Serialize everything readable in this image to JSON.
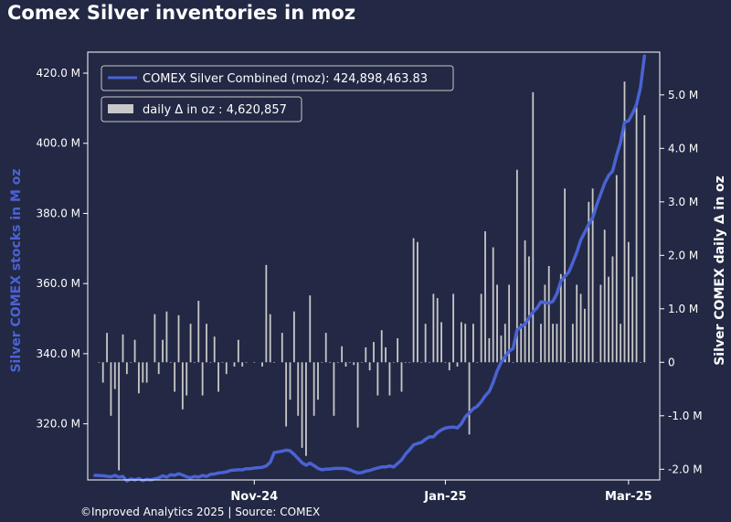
{
  "title": "Comex Silver inventories in moz",
  "footer": "©Inproved Analytics 2025 | Source: COMEX",
  "colors": {
    "background": "#232844",
    "line": "#4a63d3",
    "bars": "#c8c8c8",
    "frame": "#ffffff"
  },
  "chart_data": {
    "type": "line",
    "title": "Comex Silver inventories in moz",
    "ylabel_left": "Silver COMEX stocks in M oz",
    "ylabel_right": "Silver COMEX daily Δ in oz",
    "ylim_left": [
      304,
      426
    ],
    "ylim_right": [
      -2.2,
      5.8
    ],
    "yticks_left": [
      "320.0 M",
      "340.0 M",
      "360.0 M",
      "380.0 M",
      "400.0 M",
      "420.0 M"
    ],
    "yticks_left_values": [
      320,
      340,
      360,
      380,
      400,
      420
    ],
    "yticks_right": [
      "-2.0 M",
      "-1.0 M",
      "0",
      "1.0 M",
      "2.0 M",
      "3.0 M",
      "4.0 M",
      "5.0 M"
    ],
    "yticks_right_values": [
      -2,
      -1,
      0,
      1,
      2,
      3,
      4,
      5
    ],
    "xlim": [
      0,
      140
    ],
    "xticks": [
      {
        "label": "Nov-24",
        "x": 40
      },
      {
        "label": "Jan-25",
        "x": 88
      },
      {
        "label": "Mar-25",
        "x": 134
      }
    ],
    "legend": {
      "placement": "top-left",
      "line_label": "COMEX Silver Combined (moz): 424,898,463.83",
      "bar_label": "daily Δ in oz : 4,620,857"
    },
    "series": [
      {
        "name": "COMEX Silver Combined (moz)",
        "kind": "line",
        "points": [
          [
            0,
            305.3
          ],
          [
            2,
            305.2
          ],
          [
            4,
            304.9
          ],
          [
            5,
            305.3
          ],
          [
            6,
            304.8
          ],
          [
            7,
            305.0
          ],
          [
            8,
            303.7
          ],
          [
            9,
            304.3
          ],
          [
            10,
            304.0
          ],
          [
            11,
            304.4
          ],
          [
            12,
            303.8
          ],
          [
            13,
            304.2
          ],
          [
            14,
            304.0
          ],
          [
            15,
            304.3
          ],
          [
            16,
            304.6
          ],
          [
            17,
            305.2
          ],
          [
            18,
            304.8
          ],
          [
            19,
            305.5
          ],
          [
            20,
            305.3
          ],
          [
            21,
            305.8
          ],
          [
            22,
            305.4
          ],
          [
            23,
            304.9
          ],
          [
            24,
            304.6
          ],
          [
            25,
            305.0
          ],
          [
            26,
            304.8
          ],
          [
            27,
            305.3
          ],
          [
            28,
            305.0
          ],
          [
            29,
            305.6
          ],
          [
            30,
            305.7
          ],
          [
            31,
            306.0
          ],
          [
            32,
            306.1
          ],
          [
            33,
            306.3
          ],
          [
            34,
            306.7
          ],
          [
            35,
            306.8
          ],
          [
            36,
            306.9
          ],
          [
            37,
            306.9
          ],
          [
            38,
            307.2
          ],
          [
            39,
            307.2
          ],
          [
            40,
            307.4
          ],
          [
            41,
            307.5
          ],
          [
            42,
            307.6
          ],
          [
            43,
            308.0
          ],
          [
            44,
            309.0
          ],
          [
            45,
            311.8
          ],
          [
            46,
            312.0
          ],
          [
            47,
            312.2
          ],
          [
            48,
            312.5
          ],
          [
            49,
            312.3
          ],
          [
            50,
            311.3
          ],
          [
            51,
            310.1
          ],
          [
            52,
            308.9
          ],
          [
            53,
            308.2
          ],
          [
            54,
            308.8
          ],
          [
            55,
            308.1
          ],
          [
            56,
            307.3
          ],
          [
            57,
            306.9
          ],
          [
            58,
            307.1
          ],
          [
            59,
            307.1
          ],
          [
            60,
            307.3
          ],
          [
            61,
            307.3
          ],
          [
            62,
            307.3
          ],
          [
            63,
            307.2
          ],
          [
            64,
            306.9
          ],
          [
            65,
            306.4
          ],
          [
            66,
            306.0
          ],
          [
            67,
            306.1
          ],
          [
            68,
            306.5
          ],
          [
            69,
            306.7
          ],
          [
            70,
            307.1
          ],
          [
            71,
            307.4
          ],
          [
            72,
            307.7
          ],
          [
            73,
            307.7
          ],
          [
            74,
            308.0
          ],
          [
            75,
            307.7
          ],
          [
            76,
            308.7
          ],
          [
            77,
            309.7
          ],
          [
            78,
            311.4
          ],
          [
            79,
            312.6
          ],
          [
            80,
            314.0
          ],
          [
            81,
            314.4
          ],
          [
            82,
            314.7
          ],
          [
            83,
            315.6
          ],
          [
            84,
            316.3
          ],
          [
            85,
            316.3
          ],
          [
            86,
            317.5
          ],
          [
            87,
            318.3
          ],
          [
            88,
            318.8
          ],
          [
            89,
            319.0
          ],
          [
            90,
            319.1
          ],
          [
            91,
            318.8
          ],
          [
            92,
            320.0
          ],
          [
            93,
            322.0
          ],
          [
            94,
            323.1
          ],
          [
            95,
            324.3
          ],
          [
            96,
            325.0
          ],
          [
            97,
            326.3
          ],
          [
            98,
            328.0
          ],
          [
            99,
            329.2
          ],
          [
            100,
            331.8
          ],
          [
            101,
            335.1
          ],
          [
            102,
            337.5
          ],
          [
            103,
            339.2
          ],
          [
            104,
            340.7
          ],
          [
            105,
            341.5
          ],
          [
            106,
            346.7
          ],
          [
            107,
            347.7
          ],
          [
            108,
            348.4
          ],
          [
            109,
            350.3
          ],
          [
            110,
            351.9
          ],
          [
            111,
            353.0
          ],
          [
            112,
            354.8
          ],
          [
            113,
            354.6
          ],
          [
            114,
            354.4
          ],
          [
            115,
            354.9
          ],
          [
            116,
            357.1
          ],
          [
            117,
            360.7
          ],
          [
            118,
            362.0
          ],
          [
            119,
            363.3
          ],
          [
            120,
            366.0
          ],
          [
            121,
            368.9
          ],
          [
            122,
            372.4
          ],
          [
            123,
            374.6
          ],
          [
            124,
            376.9
          ],
          [
            125,
            378.8
          ],
          [
            126,
            382.4
          ],
          [
            127,
            385.5
          ],
          [
            128,
            388.6
          ],
          [
            129,
            390.8
          ],
          [
            130,
            392.1
          ],
          [
            131,
            396.5
          ],
          [
            132,
            400.3
          ],
          [
            133,
            406.0
          ],
          [
            134,
            406.4
          ],
          [
            135,
            408.5
          ],
          [
            136,
            411.0
          ],
          [
            137,
            415.9
          ],
          [
            138,
            424.9
          ]
        ]
      },
      {
        "name": "daily Δ in oz",
        "kind": "bar",
        "axis": "right",
        "points": [
          [
            1,
            0.0
          ],
          [
            2,
            -0.38
          ],
          [
            3,
            0.55
          ],
          [
            4,
            -1.0
          ],
          [
            5,
            -0.5
          ],
          [
            6,
            -2.02
          ],
          [
            7,
            0.52
          ],
          [
            8,
            -0.22
          ],
          [
            9,
            0.0
          ],
          [
            10,
            0.42
          ],
          [
            11,
            -0.58
          ],
          [
            12,
            -0.38
          ],
          [
            13,
            -0.38
          ],
          [
            15,
            0.9
          ],
          [
            16,
            -0.22
          ],
          [
            17,
            0.42
          ],
          [
            18,
            0.95
          ],
          [
            19,
            0.0
          ],
          [
            20,
            -0.55
          ],
          [
            21,
            0.88
          ],
          [
            22,
            -0.88
          ],
          [
            23,
            -0.62
          ],
          [
            24,
            0.72
          ],
          [
            25,
            0.0
          ],
          [
            26,
            1.15
          ],
          [
            27,
            -0.62
          ],
          [
            28,
            0.72
          ],
          [
            29,
            0.0
          ],
          [
            30,
            0.48
          ],
          [
            31,
            -0.55
          ],
          [
            32,
            0.0
          ],
          [
            33,
            -0.22
          ],
          [
            35,
            -0.08
          ],
          [
            36,
            0.42
          ],
          [
            37,
            -0.08
          ],
          [
            38,
            0.0
          ],
          [
            40,
            0.0
          ],
          [
            42,
            -0.08
          ],
          [
            43,
            1.82
          ],
          [
            44,
            0.9
          ],
          [
            45,
            0.0
          ],
          [
            47,
            0.55
          ],
          [
            48,
            -1.2
          ],
          [
            49,
            -0.7
          ],
          [
            50,
            0.95
          ],
          [
            51,
            -1.0
          ],
          [
            52,
            -1.6
          ],
          [
            53,
            -1.75
          ],
          [
            54,
            1.25
          ],
          [
            55,
            -1.0
          ],
          [
            56,
            -0.7
          ],
          [
            57,
            0.0
          ],
          [
            58,
            0.55
          ],
          [
            59,
            0.0
          ],
          [
            60,
            -1.0
          ],
          [
            61,
            0.0
          ],
          [
            62,
            0.3
          ],
          [
            63,
            -0.08
          ],
          [
            64,
            0.0
          ],
          [
            65,
            -0.05
          ],
          [
            66,
            -1.22
          ],
          [
            67,
            0.0
          ],
          [
            68,
            0.28
          ],
          [
            69,
            -0.15
          ],
          [
            70,
            0.38
          ],
          [
            71,
            -0.62
          ],
          [
            72,
            0.6
          ],
          [
            73,
            0.28
          ],
          [
            74,
            -0.62
          ],
          [
            75,
            0.0
          ],
          [
            76,
            0.45
          ],
          [
            77,
            -0.55
          ],
          [
            78,
            0.0
          ],
          [
            79,
            0.0
          ],
          [
            80,
            2.32
          ],
          [
            81,
            2.25
          ],
          [
            82,
            0.0
          ],
          [
            83,
            0.72
          ],
          [
            84,
            0.0
          ],
          [
            85,
            1.28
          ],
          [
            86,
            1.2
          ],
          [
            87,
            0.75
          ],
          [
            88,
            0.0
          ],
          [
            89,
            -0.15
          ],
          [
            90,
            1.28
          ],
          [
            91,
            -0.08
          ],
          [
            92,
            0.75
          ],
          [
            93,
            0.72
          ],
          [
            94,
            -1.35
          ],
          [
            95,
            0.72
          ],
          [
            96,
            0.0
          ],
          [
            97,
            1.28
          ],
          [
            98,
            2.45
          ],
          [
            99,
            0.45
          ],
          [
            100,
            2.15
          ],
          [
            101,
            1.45
          ],
          [
            102,
            0.5
          ],
          [
            103,
            0.72
          ],
          [
            104,
            1.45
          ],
          [
            105,
            0.0
          ],
          [
            106,
            3.6
          ],
          [
            107,
            0.72
          ],
          [
            108,
            2.28
          ],
          [
            109,
            1.98
          ],
          [
            110,
            5.05
          ],
          [
            111,
            0.0
          ],
          [
            112,
            0.72
          ],
          [
            113,
            1.45
          ],
          [
            114,
            1.8
          ],
          [
            115,
            0.72
          ],
          [
            116,
            0.72
          ],
          [
            117,
            1.65
          ],
          [
            118,
            3.25
          ],
          [
            119,
            0.0
          ],
          [
            120,
            0.72
          ],
          [
            121,
            1.45
          ],
          [
            122,
            1.28
          ],
          [
            123,
            1.0
          ],
          [
            124,
            3.0
          ],
          [
            125,
            3.25
          ],
          [
            126,
            0.0
          ],
          [
            127,
            1.45
          ],
          [
            128,
            2.48
          ],
          [
            129,
            1.6
          ],
          [
            130,
            1.98
          ],
          [
            131,
            3.5
          ],
          [
            132,
            0.72
          ],
          [
            133,
            5.25
          ],
          [
            134,
            2.25
          ],
          [
            135,
            1.6
          ],
          [
            136,
            4.85
          ],
          [
            137,
            0.0
          ],
          [
            138,
            4.62
          ]
        ]
      }
    ]
  }
}
